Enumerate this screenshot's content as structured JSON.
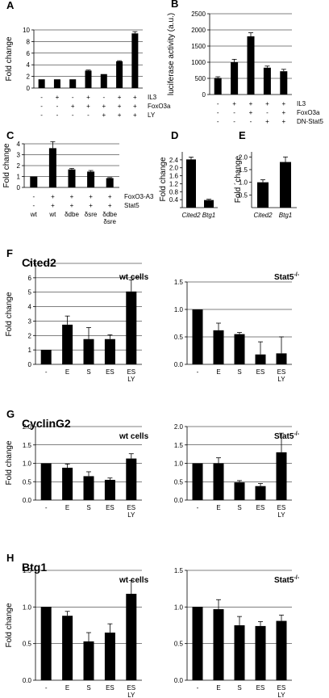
{
  "chart_data": [
    {
      "id": "A",
      "panel_label": "A",
      "type": "bar",
      "ylabel": "Fold change",
      "ylim": [
        0,
        10
      ],
      "yticks": [
        0,
        2,
        4,
        6,
        8,
        10
      ],
      "grid": true,
      "values": [
        1.5,
        1.5,
        1.5,
        3.0,
        2.4,
        4.6,
        9.4
      ],
      "errors": [
        0,
        0,
        0,
        0.1,
        0,
        0.1,
        0.3
      ],
      "conditions": [
        {
          "label": "IL3",
          "marks": [
            "-",
            "+",
            "-",
            "+",
            "-",
            "+",
            "+"
          ]
        },
        {
          "label": "FoxO3a",
          "marks": [
            "-",
            "-",
            "+",
            "+",
            "+",
            "+",
            "+"
          ]
        },
        {
          "label": "LY",
          "marks": [
            "-",
            "-",
            "-",
            "-",
            "+",
            "+",
            "+"
          ]
        }
      ]
    },
    {
      "id": "B",
      "panel_label": "B",
      "type": "bar",
      "ylabel": "luciferase activity (a.u.)",
      "ylim": [
        0,
        2500
      ],
      "yticks": [
        0,
        500,
        1000,
        1500,
        2000,
        2500
      ],
      "grid": true,
      "values": [
        510,
        1000,
        1800,
        830,
        720
      ],
      "errors": [
        40,
        90,
        110,
        50,
        60
      ],
      "conditions": [
        {
          "label": "IL3",
          "marks": [
            "-",
            "+",
            "+",
            "+",
            "+"
          ]
        },
        {
          "label": "FoxO3a",
          "marks": [
            "-",
            "-",
            "+",
            "-",
            "+"
          ]
        },
        {
          "label": "DN-Stat5",
          "marks": [
            "-",
            "-",
            "-",
            "+",
            "+"
          ]
        }
      ]
    },
    {
      "id": "C",
      "panel_label": "C",
      "type": "bar",
      "ylabel": "Fold change",
      "ylim": [
        0,
        4
      ],
      "yticks": [
        0,
        1,
        2,
        3,
        4
      ],
      "grid": true,
      "values": [
        1.0,
        3.6,
        1.65,
        1.45,
        0.85
      ],
      "errors": [
        0,
        0.6,
        0.1,
        0.1,
        0.05
      ],
      "conditions": [
        {
          "label": "FoxO3-A3",
          "marks": [
            "-",
            "+",
            "+",
            "+",
            "+"
          ]
        },
        {
          "label": "Stat5",
          "marks": [
            "-",
            "+",
            "+",
            "+",
            "+"
          ]
        }
      ],
      "categories": [
        "wt",
        "wt",
        "δdbe",
        "δsre",
        "δdbe\nδsre"
      ]
    },
    {
      "id": "D",
      "panel_label": "D",
      "type": "bar",
      "ylabel": "Fold change",
      "ylim": [
        0,
        2.8
      ],
      "yticks": [
        0,
        0.4,
        0.8,
        1.2,
        1.6,
        2.0,
        2.4
      ],
      "ytick_labels": [
        "",
        "0.4",
        "0.8",
        "1.2",
        "1.6",
        "2.0",
        "2.4"
      ],
      "grid": false,
      "categories": [
        "Cited2",
        "Btg1"
      ],
      "values": [
        2.42,
        0.38
      ],
      "errors": [
        0.12,
        0.04
      ]
    },
    {
      "id": "E",
      "panel_label": "E",
      "type": "bar",
      "ylabel": "Fold ´change",
      "ylim": [
        0,
        2.2
      ],
      "yticks": [
        0.5,
        1.0,
        1.5,
        2.0
      ],
      "grid": false,
      "categories": [
        "Cited2",
        "Btg1"
      ],
      "values": [
        1.0,
        1.8
      ],
      "errors": [
        0.1,
        0.2
      ]
    },
    {
      "id": "Fwt",
      "panel_label": "F",
      "type": "bar",
      "title": "Cited2",
      "subtitle": "wt cells",
      "ylabel": "Fold change",
      "ylim": [
        0,
        7
      ],
      "yticks": [
        0,
        1,
        2,
        3,
        4,
        5,
        6,
        7
      ],
      "grid": true,
      "categories": [
        "-",
        "E",
        "S",
        "ES",
        "ES\nLY"
      ],
      "values": [
        1.0,
        2.75,
        1.75,
        1.75,
        5.05
      ],
      "errors": [
        0,
        0.6,
        0.8,
        0.3,
        0.8
      ]
    },
    {
      "id": "Fstat",
      "type": "bar",
      "subtitle": "Stat5-/-",
      "ylim": [
        0,
        1.5
      ],
      "yticks": [
        0,
        0.5,
        1.0,
        1.5
      ],
      "grid": true,
      "categories": [
        "-",
        "E",
        "S",
        "ES",
        "ES\nLY"
      ],
      "values": [
        1.0,
        0.62,
        0.55,
        0.18,
        0.2
      ],
      "errors": [
        0,
        0.13,
        0.03,
        0.23,
        0.3
      ]
    },
    {
      "id": "Gwt",
      "panel_label": "G",
      "type": "bar",
      "title": "CyclinG2",
      "subtitle": "wt cells",
      "ylabel": "Fold change",
      "ylim": [
        0,
        2.0
      ],
      "yticks": [
        0,
        0.5,
        1.0,
        1.5,
        2.0
      ],
      "grid": true,
      "categories": [
        "-",
        "E",
        "S",
        "ES",
        "ES\nLY"
      ],
      "values": [
        1.0,
        0.88,
        0.65,
        0.55,
        1.13
      ],
      "errors": [
        0,
        0.1,
        0.12,
        0.05,
        0.13
      ]
    },
    {
      "id": "Gstat",
      "type": "bar",
      "subtitle": "Stat5-/-",
      "ylim": [
        0,
        2.0
      ],
      "yticks": [
        0,
        0.5,
        1.0,
        1.5,
        2.0
      ],
      "grid": true,
      "categories": [
        "-",
        "E",
        "S",
        "ES",
        "ES\nLY"
      ],
      "values": [
        1.0,
        1.0,
        0.48,
        0.38,
        1.3
      ],
      "errors": [
        0,
        0.15,
        0.05,
        0.07,
        0.52
      ]
    },
    {
      "id": "Hwt",
      "panel_label": "H",
      "type": "bar",
      "title": "Btg1",
      "subtitle": "wt cells",
      "ylabel": "Fold change",
      "ylim": [
        0,
        1.5
      ],
      "yticks": [
        0,
        0.5,
        1.0,
        1.5
      ],
      "grid": true,
      "categories": [
        "-",
        "E",
        "S",
        "ES",
        "ES\nLY"
      ],
      "values": [
        1.0,
        0.88,
        0.53,
        0.65,
        1.18
      ],
      "errors": [
        0,
        0.06,
        0.12,
        0.12,
        0.18
      ]
    },
    {
      "id": "Hstat",
      "type": "bar",
      "subtitle": "Stat5-/-",
      "ylim": [
        0,
        1.5
      ],
      "yticks": [
        0,
        0.5,
        1.0,
        1.5
      ],
      "grid": true,
      "categories": [
        "-",
        "E",
        "S",
        "ES",
        "ES\nLY"
      ],
      "values": [
        1.0,
        0.97,
        0.75,
        0.74,
        0.81
      ],
      "errors": [
        0,
        0.13,
        0.12,
        0.06,
        0.08
      ]
    }
  ]
}
